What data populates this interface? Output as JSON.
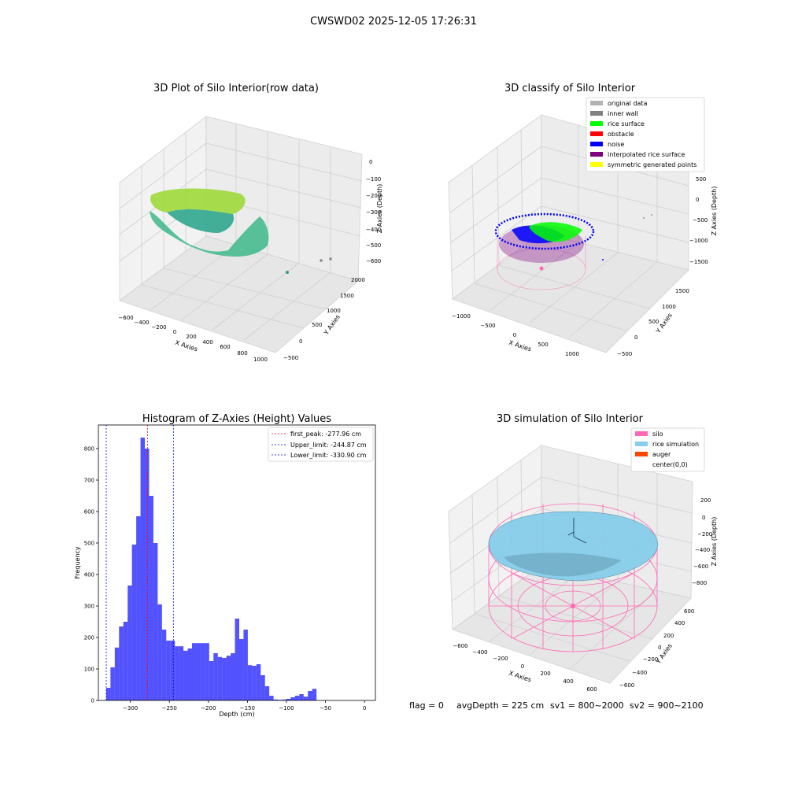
{
  "suptitle": "CWSWD02 2025-12-05 17:26:31",
  "panels": {
    "raw": {
      "title": "3D Plot of Silo Interior(row data)",
      "xlabel": "X Axies",
      "ylabel": "Y Axies",
      "zlabel": "Z Axies (Depth)",
      "x_ticks": [
        "−600",
        "−400",
        "−200",
        "0",
        "200",
        "400",
        "600",
        "800",
        "1000"
      ],
      "y_ticks": [
        "−500",
        "0",
        "500",
        "1000",
        "1500",
        "2000"
      ],
      "z_ticks": [
        "0",
        "−100",
        "−200",
        "−300",
        "−400",
        "−500",
        "−600"
      ]
    },
    "classify": {
      "title": "3D classify of Silo Interior",
      "xlabel": "X Axies",
      "ylabel": "Y Axies",
      "zlabel": "Z Axies (Depth)",
      "x_ticks": [
        "−1000",
        "−500",
        "0",
        "500",
        "1000"
      ],
      "y_ticks": [
        "−500",
        "0",
        "500",
        "1000",
        "1500"
      ],
      "z_ticks": [
        "500",
        "0",
        "−500",
        "−1000",
        "−1500"
      ],
      "legend": [
        {
          "label": "original data",
          "color": "#b3b3b3"
        },
        {
          "label": "inner wall",
          "color": "#808080"
        },
        {
          "label": "rice surface",
          "color": "#00ff00"
        },
        {
          "label": "obstacle",
          "color": "#ff0000"
        },
        {
          "label": "noise",
          "color": "#0000ff"
        },
        {
          "label": "interpolated rice surface",
          "color": "#800080"
        },
        {
          "label": "symmetric generated points",
          "color": "#ffff00"
        }
      ]
    },
    "simulation": {
      "title": "3D simulation of Silo Interior",
      "xlabel": "X Axies",
      "ylabel": "Y Axies",
      "zlabel": "Z Axies (Depth)",
      "x_ticks": [
        "−600",
        "−400",
        "−200",
        "0",
        "200",
        "400",
        "600"
      ],
      "y_ticks": [
        "−600",
        "−400",
        "−200",
        "0",
        "200",
        "400",
        "600"
      ],
      "z_ticks": [
        "200",
        "0",
        "−200",
        "−400",
        "−600",
        "−800"
      ],
      "legend": [
        {
          "label": "silo",
          "color": "#ff69b4"
        },
        {
          "label": "rice simulation",
          "color": "#87ceeb"
        },
        {
          "label": "auger",
          "color": "#ff4500"
        },
        {
          "label": "center(0,0)",
          "color": ""
        }
      ]
    }
  },
  "chart_data": {
    "type": "bar",
    "title": "Histogram of Z-Axies (Height) Values",
    "xlabel": "Depth (cm)",
    "ylabel": "Frequency",
    "xlim": [
      -341,
      14
    ],
    "ylim": [
      0,
      875
    ],
    "x_ticks": [
      -300,
      -250,
      -200,
      -150,
      -100,
      -50,
      0
    ],
    "x_tick_labels": [
      "−300",
      "−250",
      "−200",
      "−150",
      "−100",
      "−50",
      "0"
    ],
    "y_ticks": [
      0,
      100,
      200,
      300,
      400,
      500,
      600,
      700,
      800
    ],
    "y_tick_labels": [
      "0",
      "100",
      "200",
      "300",
      "400",
      "500",
      "600",
      "700",
      "800"
    ],
    "bar_color": "#0000ff",
    "bin_start": -331,
    "bin_width": 5.5,
    "values": [
      40,
      105,
      168,
      235,
      250,
      365,
      495,
      585,
      835,
      800,
      650,
      500,
      305,
      225,
      190,
      190,
      172,
      172,
      158,
      165,
      182,
      182,
      182,
      182,
      125,
      150,
      138,
      135,
      142,
      150,
      260,
      195,
      225,
      112,
      110,
      115,
      80,
      45,
      15,
      3,
      2,
      3,
      5,
      10,
      15,
      20,
      12,
      30,
      37
    ],
    "vlines": [
      {
        "label": "first_peak: -277.96 cm",
        "x": -277.96,
        "color": "#ff0000"
      },
      {
        "label": "Upper_limit: -244.87 cm",
        "x": -244.87,
        "color": "#0000ff"
      },
      {
        "label": "Lower_limit: -330.90 cm",
        "x": -330.9,
        "color": "#0000ff"
      }
    ]
  },
  "footer": {
    "flag": "flag = 0",
    "avg_depth": "avgDepth = 225 cm",
    "sv1": "sv1 = 800~2000",
    "sv2": "sv2 = 900~2100"
  }
}
